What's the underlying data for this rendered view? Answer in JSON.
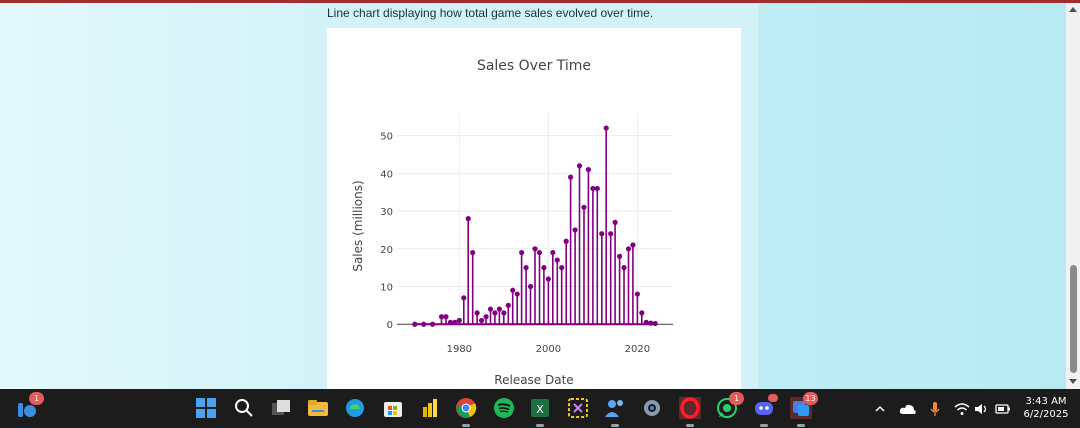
{
  "page": {
    "caption": "Line chart displaying how total game sales evolved over time."
  },
  "chart_data": {
    "type": "line",
    "title": "Sales Over Time",
    "xlabel": "Release Date",
    "ylabel": "Sales (millions)",
    "xlim": [
      1966,
      2028
    ],
    "ylim": [
      -1,
      56
    ],
    "x_ticks": [
      "1980",
      "2000",
      "2020"
    ],
    "y_ticks": [
      "0",
      "10",
      "20",
      "30",
      "40",
      "50"
    ],
    "grid": true,
    "legend": "none",
    "color": "#800080",
    "series": [
      {
        "x": [
          1970,
          1972,
          1974,
          1976,
          1977,
          1978,
          1979,
          1980,
          1981,
          1982,
          1983,
          1984,
          1985,
          1986,
          1987,
          1988,
          1989,
          1990,
          1991,
          1992,
          1993,
          1994,
          1995,
          1996,
          1997,
          1998,
          1999,
          2000,
          2001,
          2002,
          2003,
          2004,
          2005,
          2006,
          2007,
          2008,
          2009,
          2010,
          2011,
          2012,
          2013,
          2014,
          2015,
          2016,
          2017,
          2018,
          2019,
          2020,
          2021,
          2022,
          2023,
          2024
        ],
        "y": [
          0,
          0,
          0,
          2,
          2,
          0.5,
          0.5,
          1,
          7,
          28,
          19,
          3,
          1,
          2,
          4,
          3,
          4,
          3,
          5,
          9,
          8,
          19,
          15,
          10,
          20,
          19,
          15,
          12,
          19,
          17,
          15,
          22,
          39,
          25,
          42,
          31,
          41,
          36,
          36,
          24,
          52,
          24,
          27,
          18,
          15,
          20,
          21,
          8,
          3,
          0.5,
          0.3,
          0.2
        ]
      }
    ]
  },
  "taskbar": {
    "widgets_badge": "1",
    "opera_badge": "",
    "whatsapp_badge": "1",
    "teams_badge": "13",
    "clock_time": "3:43 AM",
    "clock_date": "6/2/2025"
  }
}
